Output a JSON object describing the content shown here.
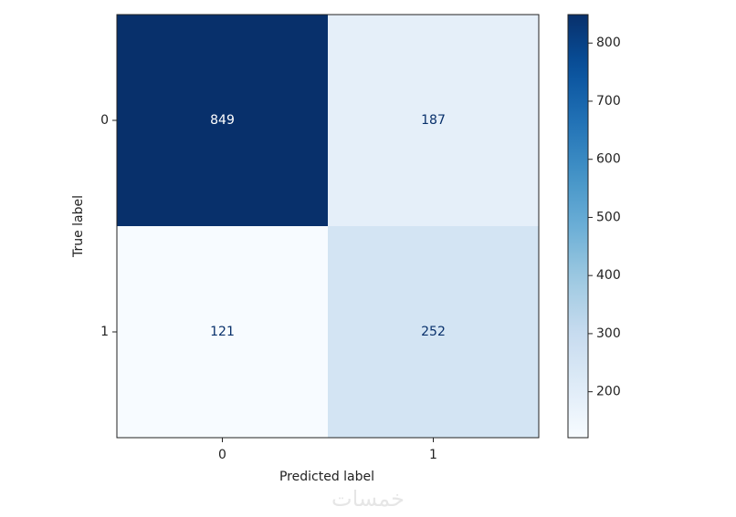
{
  "chart_data": {
    "type": "heatmap",
    "x_categories": [
      "0",
      "1"
    ],
    "y_categories": [
      "0",
      "1"
    ],
    "values": [
      [
        849,
        187
      ],
      [
        121,
        252
      ]
    ],
    "xlabel": "Predicted label",
    "ylabel": "True label",
    "colormap": "Blues",
    "clim": [
      121,
      849
    ],
    "colorbar_ticks": [
      200,
      300,
      400,
      500,
      600,
      700,
      800
    ],
    "watermark": "خمسات"
  }
}
